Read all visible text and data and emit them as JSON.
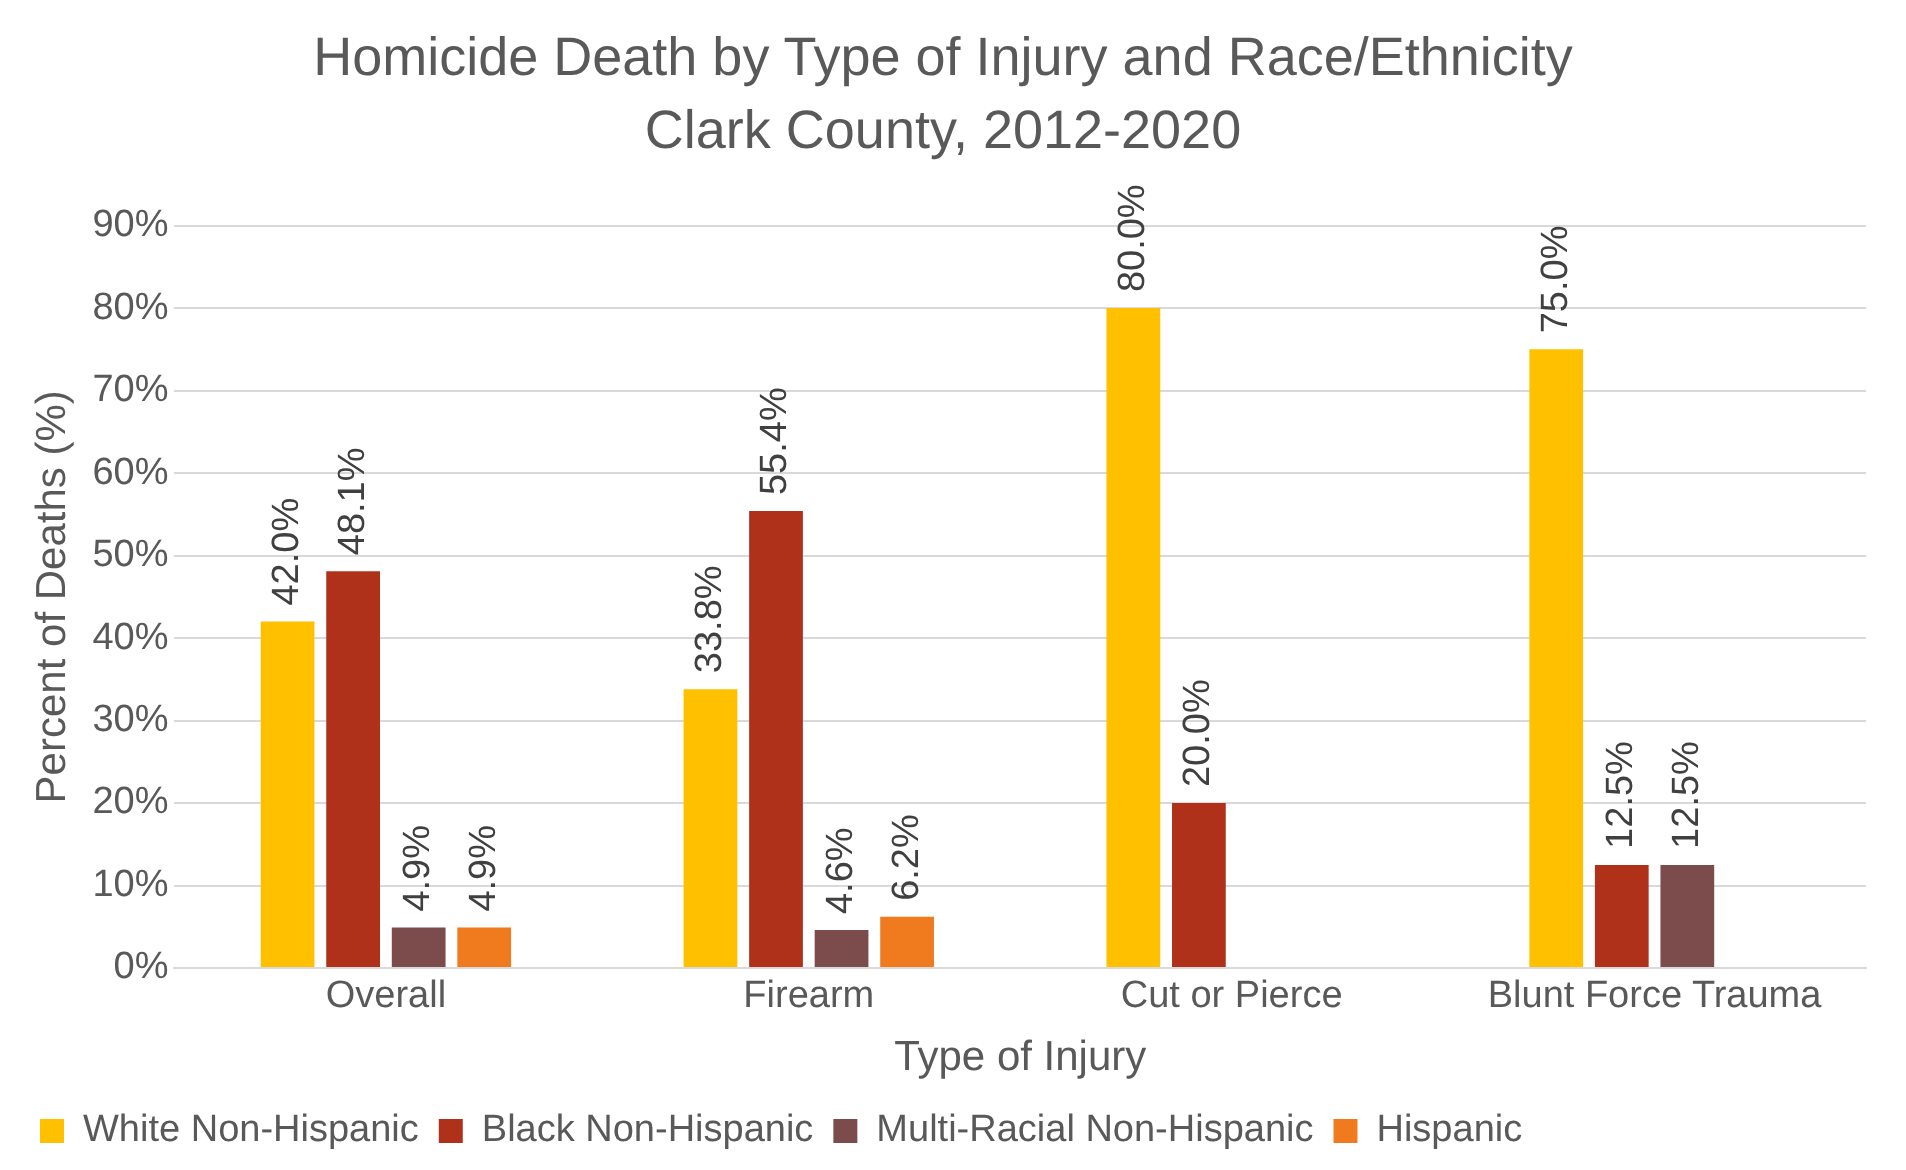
{
  "chart_data": {
    "type": "bar",
    "title": "Homicide Death by Type of Injury and Race/Ethnicity",
    "subtitle": "Clark County, 2012-2020",
    "xlabel": "Type of Injury",
    "ylabel": "Percent of Deaths (%)",
    "categories": [
      "Overall",
      "Firearm",
      "Cut or Pierce",
      "Blunt Force Trauma"
    ],
    "series": [
      {
        "name": "White Non-Hispanic",
        "color": "#ffc000",
        "values": [
          42.0,
          33.8,
          80.0,
          75.0
        ],
        "value_labels": [
          "42.0%",
          "33.8%",
          "80.0%",
          "75.0%"
        ]
      },
      {
        "name": "Black Non-Hispanic",
        "color": "#b0311a",
        "values": [
          48.1,
          55.4,
          20.0,
          12.5
        ],
        "value_labels": [
          "48.1%",
          "55.4%",
          "20.0%",
          "12.5%"
        ]
      },
      {
        "name": "Multi-Racial Non-Hispanic",
        "color": "#7b4c4b",
        "values": [
          4.9,
          4.6,
          null,
          12.5
        ],
        "value_labels": [
          "4.9%",
          "4.6%",
          null,
          "12.5%"
        ]
      },
      {
        "name": "Hispanic",
        "color": "#f07a1e",
        "values": [
          4.9,
          6.2,
          null,
          null
        ],
        "value_labels": [
          "4.9%",
          "6.2%",
          null,
          null
        ]
      }
    ],
    "ylim": [
      0,
      90
    ],
    "yticks": [
      {
        "value": 0,
        "label": "0%"
      },
      {
        "value": 10,
        "label": "10%"
      },
      {
        "value": 20,
        "label": "20%"
      },
      {
        "value": 30,
        "label": "30%"
      },
      {
        "value": 40,
        "label": "40%"
      },
      {
        "value": 50,
        "label": "50%"
      },
      {
        "value": 60,
        "label": "60%"
      },
      {
        "value": 70,
        "label": "70%"
      },
      {
        "value": 80,
        "label": "80%"
      },
      {
        "value": 90,
        "label": "90%"
      }
    ],
    "grid": "y",
    "legend": "bottom"
  }
}
